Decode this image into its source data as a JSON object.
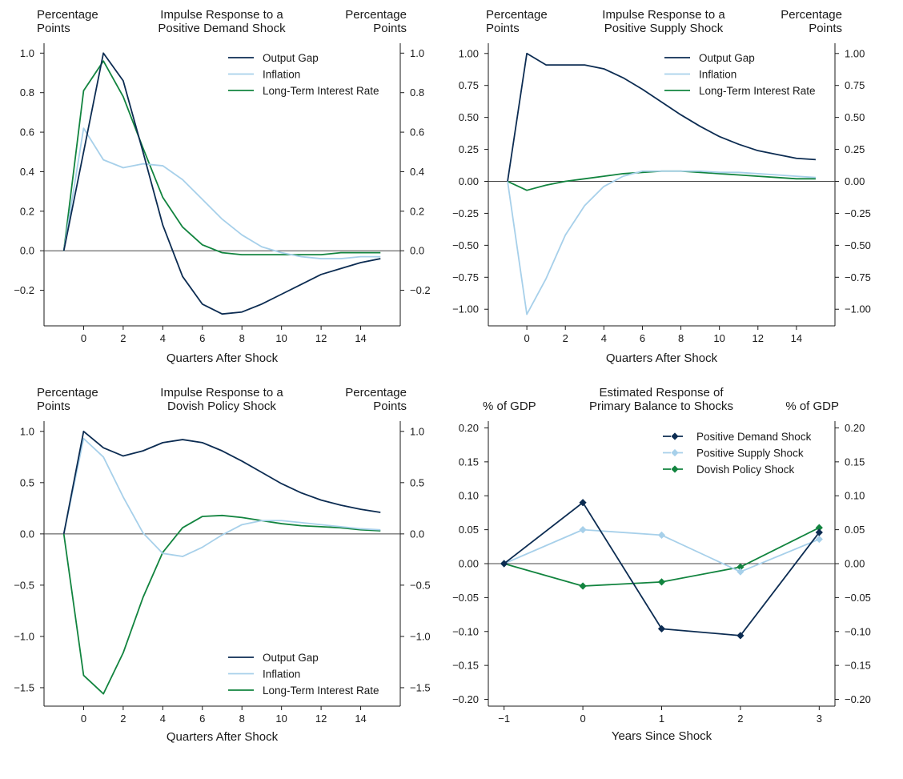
{
  "colors": {
    "output_gap": "#0c2c52",
    "inflation": "#a7d0ea",
    "long_term_rate": "#12843f",
    "positive_demand": "#0c2c52",
    "positive_supply": "#a7d0ea",
    "dovish_policy": "#12843f"
  },
  "chart_data": [
    {
      "type": "line",
      "title": "Impulse Response to a Positive Demand Shock",
      "title_lines": [
        "Impulse Response to a",
        "Positive Demand Shock"
      ],
      "left_unit_lines": [
        "Percentage",
        "Points"
      ],
      "right_unit_lines": [
        "Percentage",
        "Points"
      ],
      "xlabel": "Quarters After Shock",
      "x": [
        -1,
        0,
        1,
        2,
        3,
        4,
        5,
        6,
        7,
        8,
        9,
        10,
        11,
        12,
        13,
        14,
        15
      ],
      "xlim": [
        -2,
        16
      ],
      "xticks": [
        0,
        2,
        4,
        6,
        8,
        10,
        12,
        14
      ],
      "xtick_labels": [
        "0",
        "2",
        "4",
        "6",
        "8",
        "10",
        "12",
        "14"
      ],
      "ylim": [
        -0.38,
        1.05
      ],
      "yticks": [
        -0.2,
        0.0,
        0.2,
        0.4,
        0.6,
        0.8,
        1.0
      ],
      "ytick_labels": [
        "−0.2",
        "0.0",
        "0.2",
        "0.4",
        "0.6",
        "0.8",
        "1.0"
      ],
      "legend_loc": "top-right",
      "series": [
        {
          "name": "Output Gap",
          "color_key": "output_gap",
          "values": [
            0,
            0.5,
            1.0,
            0.86,
            0.5,
            0.13,
            -0.13,
            -0.27,
            -0.32,
            -0.31,
            -0.27,
            -0.22,
            -0.17,
            -0.12,
            -0.09,
            -0.06,
            -0.04
          ]
        },
        {
          "name": "Inflation",
          "color_key": "inflation",
          "values": [
            0,
            0.62,
            0.46,
            0.42,
            0.44,
            0.43,
            0.36,
            0.26,
            0.16,
            0.08,
            0.02,
            -0.01,
            -0.03,
            -0.04,
            -0.04,
            -0.03,
            -0.03
          ]
        },
        {
          "name": "Long-Term Interest Rate",
          "color_key": "long_term_rate",
          "values": [
            0,
            0.81,
            0.96,
            0.78,
            0.52,
            0.27,
            0.12,
            0.03,
            -0.01,
            -0.02,
            -0.02,
            -0.02,
            -0.02,
            -0.02,
            -0.01,
            -0.01,
            -0.01
          ]
        }
      ]
    },
    {
      "type": "line",
      "title": "Impulse Response to a Positive Supply Shock",
      "title_lines": [
        "Impulse Response to a",
        "Positive Supply Shock"
      ],
      "left_unit_lines": [
        "Percentage",
        "Points"
      ],
      "right_unit_lines": [
        "Percentage",
        "Points"
      ],
      "xlabel": "Quarters After Shock",
      "x": [
        -1,
        0,
        1,
        2,
        3,
        4,
        5,
        6,
        7,
        8,
        9,
        10,
        11,
        12,
        13,
        14,
        15
      ],
      "xlim": [
        -2,
        16
      ],
      "xticks": [
        0,
        2,
        4,
        6,
        8,
        10,
        12,
        14
      ],
      "xtick_labels": [
        "0",
        "2",
        "4",
        "6",
        "8",
        "10",
        "12",
        "14"
      ],
      "ylim": [
        -1.13,
        1.08
      ],
      "yticks": [
        -1.0,
        -0.75,
        -0.5,
        -0.25,
        0.0,
        0.25,
        0.5,
        0.75,
        1.0
      ],
      "ytick_labels": [
        "−1.00",
        "−0.75",
        "−0.50",
        "−0.25",
        "0.00",
        "0.25",
        "0.50",
        "0.75",
        "1.00"
      ],
      "legend_loc": "top-right",
      "series": [
        {
          "name": "Output Gap",
          "color_key": "output_gap",
          "values": [
            0,
            1.0,
            0.91,
            0.91,
            0.91,
            0.88,
            0.81,
            0.72,
            0.62,
            0.52,
            0.43,
            0.35,
            0.29,
            0.24,
            0.21,
            0.18,
            0.17
          ]
        },
        {
          "name": "Inflation",
          "color_key": "inflation",
          "values": [
            0,
            -1.04,
            -0.76,
            -0.42,
            -0.19,
            -0.04,
            0.04,
            0.08,
            0.08,
            0.08,
            0.08,
            0.07,
            0.07,
            0.06,
            0.05,
            0.04,
            0.03
          ]
        },
        {
          "name": "Long-Term Interest Rate",
          "color_key": "long_term_rate",
          "values": [
            0,
            -0.07,
            -0.03,
            0.0,
            0.02,
            0.04,
            0.06,
            0.07,
            0.08,
            0.08,
            0.07,
            0.06,
            0.05,
            0.04,
            0.03,
            0.02,
            0.02
          ]
        }
      ]
    },
    {
      "type": "line",
      "title": "Impulse Response to a Dovish Policy Shock",
      "title_lines": [
        "Impulse Response to a",
        "Dovish Policy Shock"
      ],
      "left_unit_lines": [
        "Percentage",
        "Points"
      ],
      "right_unit_lines": [
        "Percentage",
        "Points"
      ],
      "xlabel": "Quarters After Shock",
      "x": [
        -1,
        0,
        1,
        2,
        3,
        4,
        5,
        6,
        7,
        8,
        9,
        10,
        11,
        12,
        13,
        14,
        15
      ],
      "xlim": [
        -2,
        16
      ],
      "xticks": [
        0,
        2,
        4,
        6,
        8,
        10,
        12,
        14
      ],
      "xtick_labels": [
        "0",
        "2",
        "4",
        "6",
        "8",
        "10",
        "12",
        "14"
      ],
      "ylim": [
        -1.68,
        1.1
      ],
      "yticks": [
        -1.5,
        -1.0,
        -0.5,
        0.0,
        0.5,
        1.0
      ],
      "ytick_labels": [
        "−1.5",
        "−1.0",
        "−0.5",
        "0.0",
        "0.5",
        "1.0"
      ],
      "legend_loc": "bottom-right",
      "series": [
        {
          "name": "Output Gap",
          "color_key": "output_gap",
          "values": [
            0,
            1.0,
            0.84,
            0.76,
            0.81,
            0.89,
            0.92,
            0.89,
            0.81,
            0.71,
            0.6,
            0.49,
            0.4,
            0.33,
            0.28,
            0.24,
            0.21
          ]
        },
        {
          "name": "Inflation",
          "color_key": "inflation",
          "values": [
            0,
            0.93,
            0.75,
            0.36,
            0.01,
            -0.19,
            -0.22,
            -0.13,
            -0.01,
            0.09,
            0.13,
            0.13,
            0.11,
            0.09,
            0.07,
            0.05,
            0.04
          ]
        },
        {
          "name": "Long-Term Interest Rate",
          "color_key": "long_term_rate",
          "values": [
            0,
            -1.38,
            -1.56,
            -1.16,
            -0.62,
            -0.18,
            0.06,
            0.17,
            0.18,
            0.16,
            0.13,
            0.1,
            0.08,
            0.07,
            0.06,
            0.04,
            0.03
          ]
        }
      ]
    },
    {
      "type": "line",
      "title": "Estimated Response of Primary Balance to Shocks",
      "title_lines": [
        "Estimated Response of",
        "Primary Balance to Shocks"
      ],
      "left_unit_lines": [
        "",
        "% of GDP"
      ],
      "right_unit_lines": [
        "",
        "% of GDP"
      ],
      "xlabel": "Years Since Shock",
      "x": [
        -1,
        0,
        1,
        2,
        3
      ],
      "xlim": [
        -1.2,
        3.2
      ],
      "xticks": [
        -1,
        0,
        1,
        2,
        3
      ],
      "xtick_labels": [
        "−1",
        "0",
        "1",
        "2",
        "3"
      ],
      "ylim": [
        -0.21,
        0.21
      ],
      "yticks": [
        -0.2,
        -0.15,
        -0.1,
        -0.05,
        0.0,
        0.05,
        0.1,
        0.15,
        0.2
      ],
      "ytick_labels": [
        "−0.20",
        "−0.15",
        "−0.10",
        "−0.05",
        "0.00",
        "0.05",
        "0.10",
        "0.15",
        "0.20"
      ],
      "legend_loc": "top-right",
      "markers": "diamond",
      "series": [
        {
          "name": "Positive Demand Shock",
          "color_key": "positive_demand",
          "values": [
            0,
            0.09,
            -0.096,
            -0.106,
            0.046
          ]
        },
        {
          "name": "Positive Supply Shock",
          "color_key": "positive_supply",
          "values": [
            0,
            0.05,
            0.042,
            -0.012,
            0.036
          ]
        },
        {
          "name": "Dovish Policy Shock",
          "color_key": "dovish_policy",
          "values": [
            0,
            -0.033,
            -0.027,
            -0.005,
            0.053
          ]
        }
      ]
    }
  ]
}
